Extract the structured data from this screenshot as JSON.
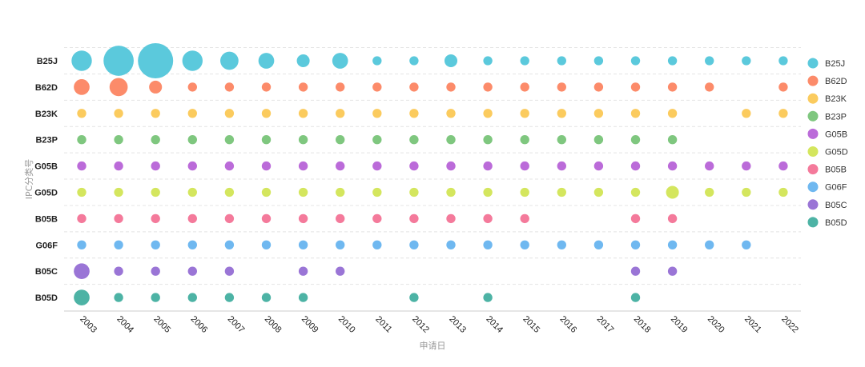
{
  "chart_data": {
    "type": "scatter",
    "title": "",
    "xlabel": "申请日",
    "ylabel": "IPC分类号",
    "legend_position": "right",
    "grid": true,
    "x": [
      "2003",
      "2004",
      "2005",
      "2006",
      "2007",
      "2008",
      "2009",
      "2010",
      "2011",
      "2012",
      "2013",
      "2014",
      "2015",
      "2016",
      "2017",
      "2018",
      "2019",
      "2020",
      "2021",
      "2022"
    ],
    "categories": [
      "B25J",
      "B62D",
      "B23K",
      "B23P",
      "G05B",
      "G05D",
      "B05B",
      "G06F",
      "B05C",
      "B05D"
    ],
    "series": [
      {
        "name": "B25J",
        "color": "#5bc9dc",
        "values": [
          5,
          11,
          15,
          5,
          4,
          3,
          2,
          3,
          1,
          1,
          2,
          1,
          1,
          1,
          1,
          1,
          1,
          1,
          1,
          1
        ]
      },
      {
        "name": "B62D",
        "color": "#fc8b6a",
        "values": [
          3,
          4,
          2,
          1,
          1,
          1,
          1,
          1,
          1,
          1,
          1,
          1,
          1,
          1,
          1,
          1,
          1,
          1,
          null,
          1
        ]
      },
      {
        "name": "B23K",
        "color": "#fbcb5e",
        "values": [
          1,
          1,
          1,
          1,
          1,
          1,
          1,
          1,
          1,
          1,
          1,
          1,
          1,
          1,
          1,
          1,
          1,
          null,
          1,
          1
        ]
      },
      {
        "name": "B23P",
        "color": "#7fc77f",
        "values": [
          1,
          1,
          1,
          1,
          1,
          1,
          1,
          1,
          1,
          1,
          1,
          1,
          1,
          1,
          1,
          1,
          1,
          null,
          null,
          null
        ]
      },
      {
        "name": "G05B",
        "color": "#bb6bd9",
        "values": [
          1,
          1,
          1,
          1,
          1,
          1,
          1,
          1,
          1,
          1,
          1,
          1,
          1,
          1,
          1,
          1,
          1,
          1,
          1,
          1
        ]
      },
      {
        "name": "G05D",
        "color": "#d4e65e",
        "values": [
          1,
          1,
          1,
          1,
          1,
          1,
          1,
          1,
          1,
          1,
          1,
          1,
          1,
          1,
          1,
          1,
          2,
          1,
          1,
          1
        ]
      },
      {
        "name": "B05B",
        "color": "#f47a9b",
        "values": [
          1,
          1,
          1,
          1,
          1,
          1,
          1,
          1,
          1,
          1,
          1,
          1,
          1,
          null,
          null,
          1,
          1,
          null,
          null,
          null
        ]
      },
      {
        "name": "G06F",
        "color": "#6fb8f0",
        "values": [
          1,
          1,
          1,
          1,
          1,
          1,
          1,
          1,
          1,
          1,
          1,
          1,
          1,
          1,
          1,
          1,
          1,
          1,
          1,
          null
        ]
      },
      {
        "name": "B05C",
        "color": "#9a75d6",
        "values": [
          3,
          1,
          1,
          1,
          1,
          null,
          1,
          1,
          null,
          null,
          null,
          null,
          null,
          null,
          null,
          1,
          1,
          null,
          null,
          null
        ]
      },
      {
        "name": "B05D",
        "color": "#4db3a5",
        "values": [
          3,
          1,
          1,
          1,
          1,
          1,
          1,
          null,
          null,
          1,
          null,
          1,
          null,
          null,
          null,
          1,
          null,
          null,
          null,
          null
        ]
      }
    ]
  }
}
